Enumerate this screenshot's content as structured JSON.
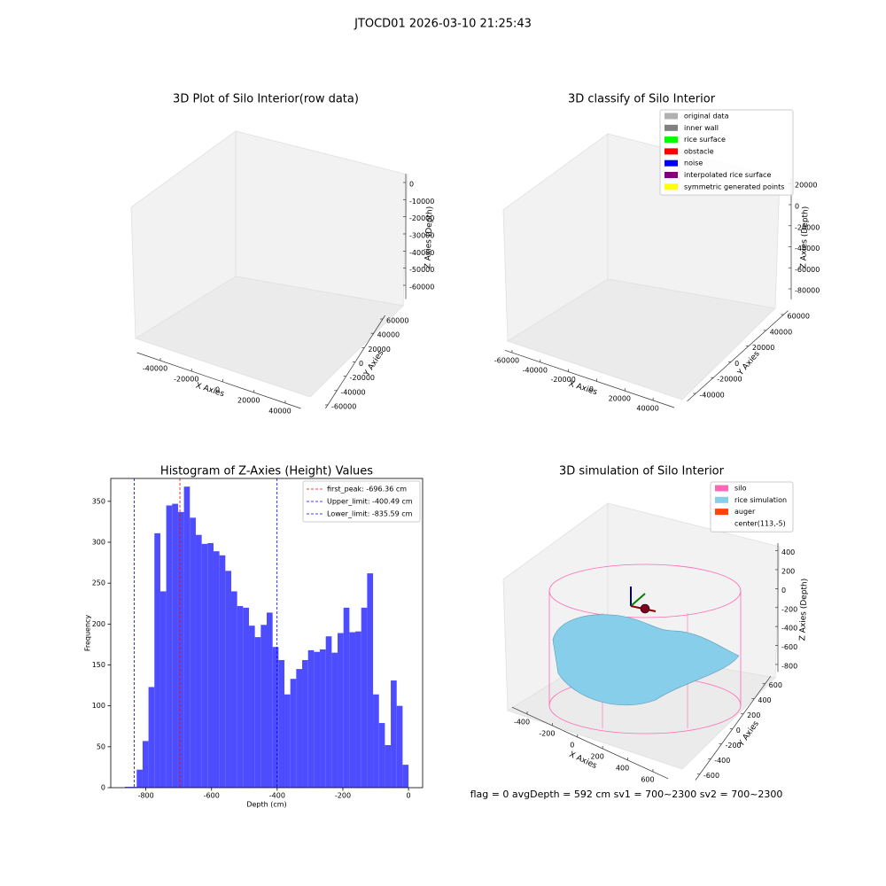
{
  "title": "JTOCD01 2026-03-10 21:25:43",
  "footer": "flag = 0     avgDepth = 592 cm  sv1 = 700~2300  sv2 = 700~2300",
  "chart_data": [
    {
      "type": "scatter3d",
      "title": "3D Plot of Silo Interior(row data)",
      "xlabel": "X Axies",
      "ylabel": "Y Axies",
      "zlabel": "Z Axies (Depth)",
      "xlim": [
        -55000,
        50000
      ],
      "ylim": [
        -65000,
        65000
      ],
      "zlim": [
        -68000,
        5000
      ],
      "xticks": [
        -40000,
        -20000,
        0,
        20000,
        40000
      ],
      "yticks": [
        -60000,
        -40000,
        -20000,
        0,
        20000,
        40000,
        60000
      ],
      "zticks": [
        -60000,
        -50000,
        -40000,
        -30000,
        -20000,
        -10000,
        0
      ]
    },
    {
      "type": "scatter3d",
      "title": "3D classify of Silo Interior",
      "xlabel": "X Axies",
      "ylabel": "Y Axies",
      "zlabel": "Z Axies (Depth)",
      "xlim": [
        -65000,
        55000
      ],
      "ylim": [
        -50000,
        65000
      ],
      "zlim": [
        -90000,
        25000
      ],
      "xticks": [
        -60000,
        -40000,
        -20000,
        0,
        20000,
        40000
      ],
      "yticks": [
        -40000,
        -20000,
        0,
        20000,
        40000,
        60000
      ],
      "zticks": [
        -80000,
        -60000,
        -40000,
        -20000,
        0,
        20000
      ],
      "legend_entries": [
        {
          "name": "original data",
          "color": "#b0b0b0"
        },
        {
          "name": "inner wall",
          "color": "#808080"
        },
        {
          "name": "rice surface",
          "color": "#00ff00"
        },
        {
          "name": "obstacle",
          "color": "#ff0000"
        },
        {
          "name": "noise",
          "color": "#0000ff"
        },
        {
          "name": "interpolated rice surface",
          "color": "#800080"
        },
        {
          "name": "symmetric generated points",
          "color": "#ffff00"
        }
      ]
    },
    {
      "type": "histogram",
      "title": "Histogram of Z-Axies (Height) Values",
      "xlabel": "Depth (cm)",
      "ylabel": "Frequency",
      "color": "#4d4dff",
      "bins": [
        -864,
        -846,
        -828,
        -810,
        -792,
        -774,
        -756,
        -738,
        -720,
        -702,
        -684,
        -666,
        -648,
        -630,
        -612,
        -594,
        -576,
        -558,
        -540,
        -522,
        -504,
        -486,
        -468,
        -450,
        -432,
        -414,
        -396,
        -378,
        -360,
        -342,
        -324,
        -306,
        -288,
        -270,
        -252,
        -234,
        -216,
        -198,
        -180,
        -162,
        -144,
        -126,
        -108,
        -90,
        -72,
        -54,
        -36,
        -18,
        0
      ],
      "values": [
        1,
        1,
        22,
        57,
        123,
        311,
        240,
        345,
        347,
        337,
        368,
        330,
        309,
        298,
        299,
        289,
        284,
        265,
        240,
        222,
        220,
        198,
        184,
        199,
        214,
        172,
        156,
        114,
        133,
        145,
        156,
        168,
        166,
        169,
        185,
        165,
        189,
        220,
        190,
        191,
        220,
        262,
        114,
        79,
        52,
        131,
        100,
        28
      ],
      "xlim": [
        -907,
        43
      ],
      "ylim": [
        0,
        378
      ],
      "xticks": [
        -800,
        -600,
        -400,
        -200,
        0
      ],
      "yticks": [
        0,
        50,
        100,
        150,
        200,
        250,
        300,
        350
      ],
      "lines": [
        {
          "name": "first_peak: -696.36 cm",
          "value": -696.36,
          "color": "#ff0000"
        },
        {
          "name": "Upper_limit: -400.49 cm",
          "value": -400.49,
          "color": "#0000ff"
        },
        {
          "name": "Lower_limit: -835.59 cm",
          "value": -835.59,
          "color": "#0000ff"
        }
      ],
      "legend": "upper right"
    },
    {
      "type": "surface3d",
      "title": "3D simulation of Silo Interior",
      "xlabel": "X Axies",
      "ylabel": "Y Axies",
      "zlabel": "Z Axies (Depth)",
      "xlim": [
        -520,
        720
      ],
      "ylim": [
        -680,
        700
      ],
      "zlim": [
        -880,
        480
      ],
      "xticks": [
        -400,
        -200,
        0,
        200,
        400,
        600
      ],
      "yticks": [
        -600,
        -400,
        -200,
        0,
        200,
        400,
        600
      ],
      "zticks": [
        -800,
        -600,
        -400,
        -200,
        0,
        200,
        400
      ],
      "legend_entries": [
        {
          "name": "silo",
          "color": "#ff69b4"
        },
        {
          "name": "rice simulation",
          "color": "#87ceeb"
        },
        {
          "name": "auger",
          "color": "#ff4500"
        },
        {
          "name": "center(113,-5)"
        }
      ]
    }
  ]
}
